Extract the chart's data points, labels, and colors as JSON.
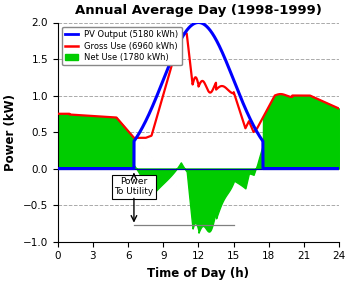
{
  "title": "Annual Average Day (1998-1999)",
  "xlabel": "Time of Day (h)",
  "ylabel": "Power (kW)",
  "xlim": [
    0,
    24
  ],
  "ylim": [
    -1,
    2
  ],
  "xticks": [
    0,
    3,
    6,
    9,
    12,
    15,
    18,
    21,
    24
  ],
  "yticks": [
    -1,
    -0.5,
    0,
    0.5,
    1,
    1.5,
    2
  ],
  "pv_color": "#0000FF",
  "gross_color": "#FF0000",
  "net_color": "#00CC00",
  "annotation_text": "Power\nTo Utility",
  "legend_entries": [
    "PV Output (5180 kWh)",
    "Gross Use (6960 kWh)",
    "Net Use (1780 kWh)"
  ],
  "background_color": "#FFFFFF",
  "grid_color": "#AAAAAA"
}
